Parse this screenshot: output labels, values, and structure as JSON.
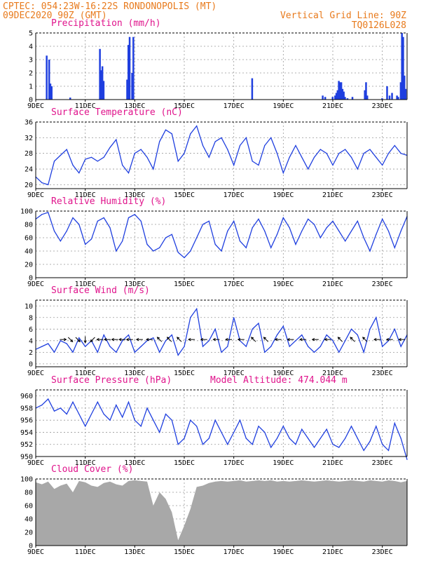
{
  "header": {
    "line1": "CPTEC:   054:23W-16:22S   RONDONOPOLIS (MT)",
    "line2": "09DEC2020 90Z (GMT)",
    "grid_note": "Vertical Grid Line: 90Z",
    "code": "TQ0126L028"
  },
  "colors": {
    "header": "#e87a1c",
    "title": "#e0148c",
    "line": "#1f3fdf",
    "bar": "#1f3fdf",
    "cloud": "#a8a8a8"
  },
  "x_categories": [
    "9DEC",
    "11DEC",
    "13DEC",
    "15DEC",
    "17DEC",
    "19DEC",
    "21DEC",
    "23DEC"
  ],
  "x_day_offsets": [
    0,
    2,
    4,
    6,
    8,
    10,
    12,
    14
  ],
  "x_range_days": [
    0,
    15
  ],
  "chart_data": [
    {
      "id": "precip",
      "type": "bar",
      "title": "Precipitation (mm/h)",
      "ylim": [
        0,
        5
      ],
      "yticks": [
        0,
        1,
        2,
        3,
        4,
        5
      ],
      "values": [
        [
          0.45,
          3.3
        ],
        [
          0.55,
          3.0
        ],
        [
          0.6,
          1.2
        ],
        [
          0.65,
          1.0
        ],
        [
          1.4,
          0.15
        ],
        [
          2.6,
          3.8
        ],
        [
          2.65,
          2.2
        ],
        [
          2.7,
          2.5
        ],
        [
          2.75,
          1.4
        ],
        [
          3.7,
          1.5
        ],
        [
          3.75,
          4.1
        ],
        [
          3.8,
          4.7
        ],
        [
          3.9,
          2.0
        ],
        [
          3.95,
          4.7
        ],
        [
          8.75,
          1.6
        ],
        [
          11.6,
          0.3
        ],
        [
          11.7,
          0.2
        ],
        [
          12.0,
          0.2
        ],
        [
          12.1,
          0.3
        ],
        [
          12.15,
          0.5
        ],
        [
          12.2,
          0.7
        ],
        [
          12.25,
          1.4
        ],
        [
          12.3,
          1.3
        ],
        [
          12.35,
          1.3
        ],
        [
          12.4,
          0.8
        ],
        [
          12.45,
          0.6
        ],
        [
          12.5,
          0.2
        ],
        [
          12.6,
          0.1
        ],
        [
          12.8,
          0.2
        ],
        [
          13.3,
          0.7
        ],
        [
          13.35,
          1.3
        ],
        [
          13.4,
          0.3
        ],
        [
          14.0,
          0.1
        ],
        [
          14.2,
          1.0
        ],
        [
          14.3,
          0.3
        ],
        [
          14.4,
          0.5
        ],
        [
          14.6,
          0.3
        ],
        [
          14.65,
          0.2
        ],
        [
          14.75,
          1.3
        ],
        [
          14.8,
          5.0
        ],
        [
          14.85,
          4.7
        ],
        [
          14.9,
          1.8
        ],
        [
          14.95,
          0.8
        ]
      ]
    },
    {
      "id": "temp",
      "type": "line",
      "title": "Surface Temperature (nC)",
      "ylim": [
        19,
        36
      ],
      "yticks": [
        20,
        24,
        28,
        32,
        36
      ],
      "x": [
        0,
        0.25,
        0.5,
        0.75,
        1,
        1.25,
        1.5,
        1.75,
        2,
        2.25,
        2.5,
        2.75,
        3,
        3.25,
        3.5,
        3.75,
        4,
        4.25,
        4.5,
        4.75,
        5,
        5.25,
        5.5,
        5.75,
        6,
        6.25,
        6.5,
        6.75,
        7,
        7.25,
        7.5,
        7.75,
        8,
        8.25,
        8.5,
        8.75,
        9,
        9.25,
        9.5,
        9.75,
        10,
        10.25,
        10.5,
        10.75,
        11,
        11.25,
        11.5,
        11.75,
        12,
        12.25,
        12.5,
        12.75,
        13,
        13.25,
        13.5,
        13.75,
        14,
        14.25,
        14.5,
        14.75,
        15
      ],
      "y": [
        22,
        20.5,
        20,
        26,
        27.5,
        29,
        25,
        23,
        26.5,
        27,
        26,
        27,
        29.5,
        31.5,
        25,
        23,
        28,
        29,
        27,
        24,
        31,
        34,
        33,
        26,
        28,
        33,
        35,
        30,
        27,
        31,
        32,
        29,
        25,
        30,
        32,
        26,
        25,
        30,
        32,
        28,
        23,
        27,
        30,
        27,
        24,
        27,
        29,
        28,
        25,
        28,
        29,
        27,
        24,
        28,
        29,
        27,
        25,
        28,
        30,
        28,
        27.5
      ]
    },
    {
      "id": "rh",
      "type": "line",
      "title": "Relative Humidity (%)",
      "ylim": [
        0,
        100
      ],
      "yticks": [
        0,
        20,
        40,
        60,
        80,
        100
      ],
      "x": [
        0,
        0.25,
        0.5,
        0.75,
        1,
        1.25,
        1.5,
        1.75,
        2,
        2.25,
        2.5,
        2.75,
        3,
        3.25,
        3.5,
        3.75,
        4,
        4.25,
        4.5,
        4.75,
        5,
        5.25,
        5.5,
        5.75,
        6,
        6.25,
        6.5,
        6.75,
        7,
        7.25,
        7.5,
        7.75,
        8,
        8.25,
        8.5,
        8.75,
        9,
        9.25,
        9.5,
        9.75,
        10,
        10.25,
        10.5,
        10.75,
        11,
        11.25,
        11.5,
        11.75,
        12,
        12.25,
        12.5,
        12.75,
        13,
        13.25,
        13.5,
        13.75,
        14,
        14.25,
        14.5,
        14.75,
        15
      ],
      "y": [
        88,
        95,
        98,
        70,
        55,
        70,
        90,
        80,
        50,
        58,
        85,
        90,
        75,
        40,
        55,
        90,
        95,
        85,
        50,
        40,
        45,
        60,
        65,
        38,
        30,
        40,
        60,
        80,
        85,
        50,
        40,
        70,
        85,
        55,
        45,
        75,
        88,
        70,
        45,
        65,
        90,
        75,
        50,
        70,
        88,
        80,
        60,
        75,
        85,
        70,
        55,
        70,
        85,
        60,
        40,
        65,
        88,
        70,
        45,
        70,
        92
      ]
    },
    {
      "id": "wind",
      "type": "line",
      "title": "Surface Wind (m/s)",
      "ylim": [
        -0.5,
        11
      ],
      "yticks": [
        0,
        2,
        4,
        6,
        8,
        10
      ],
      "x": [
        0,
        0.25,
        0.5,
        0.75,
        1,
        1.25,
        1.5,
        1.75,
        2,
        2.25,
        2.5,
        2.75,
        3,
        3.25,
        3.5,
        3.75,
        4,
        4.25,
        4.5,
        4.75,
        5,
        5.25,
        5.5,
        5.75,
        6,
        6.25,
        6.5,
        6.75,
        7,
        7.25,
        7.5,
        7.75,
        8,
        8.25,
        8.5,
        8.75,
        9,
        9.25,
        9.5,
        9.75,
        10,
        10.25,
        10.5,
        10.75,
        11,
        11.25,
        11.5,
        11.75,
        12,
        12.25,
        12.5,
        12.75,
        13,
        13.25,
        13.5,
        13.75,
        14,
        14.25,
        14.5,
        14.75,
        15
      ],
      "y": [
        2.5,
        3,
        3.5,
        2,
        4,
        3.5,
        2,
        4.5,
        3,
        4,
        2,
        5,
        3,
        2,
        4,
        5,
        2,
        3,
        4,
        4.5,
        2,
        4,
        5,
        1.5,
        3,
        8,
        9.5,
        3,
        4,
        6,
        2,
        3,
        8,
        4,
        3,
        6,
        7,
        2,
        3,
        5,
        6.5,
        3,
        4,
        5,
        3,
        2,
        3,
        5,
        4,
        2,
        4,
        6,
        5,
        2,
        6,
        8,
        3,
        4,
        6,
        3,
        5
      ],
      "arrows": [
        [
          1.1,
          "E"
        ],
        [
          1.4,
          "SE"
        ],
        [
          1.7,
          "SE"
        ],
        [
          2,
          "S"
        ],
        [
          2.3,
          "SW"
        ],
        [
          2.6,
          "W"
        ],
        [
          2.9,
          "W"
        ],
        [
          3.2,
          "W"
        ],
        [
          3.5,
          "W"
        ],
        [
          3.8,
          "W"
        ],
        [
          4.2,
          "W"
        ],
        [
          4.6,
          "W"
        ],
        [
          5,
          "NW"
        ],
        [
          5.4,
          "NW"
        ],
        [
          5.8,
          "NW"
        ],
        [
          6.3,
          "W"
        ],
        [
          6.8,
          "W"
        ],
        [
          7.3,
          "W"
        ],
        [
          7.8,
          "W"
        ],
        [
          8.3,
          "W"
        ],
        [
          8.8,
          "NW"
        ],
        [
          9.3,
          "NW"
        ],
        [
          9.8,
          "W"
        ],
        [
          10.3,
          "W"
        ],
        [
          10.8,
          "W"
        ],
        [
          11.3,
          "W"
        ],
        [
          11.8,
          "W"
        ],
        [
          12.3,
          "NW"
        ],
        [
          12.8,
          "NW"
        ],
        [
          13.3,
          "NW"
        ],
        [
          13.8,
          "W"
        ],
        [
          14.3,
          "W"
        ],
        [
          14.8,
          "W"
        ]
      ]
    },
    {
      "id": "pres",
      "type": "line",
      "title": "Surface Pressure (hPa)",
      "note": "Model Altitude: 474.044 m",
      "ylim": [
        950,
        961
      ],
      "yticks": [
        950,
        952,
        954,
        956,
        958,
        960
      ],
      "x": [
        0,
        0.25,
        0.5,
        0.75,
        1,
        1.25,
        1.5,
        1.75,
        2,
        2.25,
        2.5,
        2.75,
        3,
        3.25,
        3.5,
        3.75,
        4,
        4.25,
        4.5,
        4.75,
        5,
        5.25,
        5.5,
        5.75,
        6,
        6.25,
        6.5,
        6.75,
        7,
        7.25,
        7.5,
        7.75,
        8,
        8.25,
        8.5,
        8.75,
        9,
        9.25,
        9.5,
        9.75,
        10,
        10.25,
        10.5,
        10.75,
        11,
        11.25,
        11.5,
        11.75,
        12,
        12.25,
        12.5,
        12.75,
        13,
        13.25,
        13.5,
        13.75,
        14,
        14.25,
        14.5,
        14.75,
        15
      ],
      "y": [
        958,
        958.5,
        959.5,
        957.5,
        958,
        957,
        959,
        957,
        955,
        957,
        959,
        957,
        956,
        958.5,
        956.5,
        959,
        956,
        955,
        958,
        956,
        954,
        957,
        956,
        952,
        953,
        956,
        955,
        952,
        953,
        956,
        954,
        952,
        954,
        956,
        953,
        952,
        955,
        954,
        951.5,
        953,
        955,
        953,
        952,
        954.5,
        953,
        951.5,
        953,
        954.5,
        952,
        951.5,
        953,
        955,
        953,
        951,
        952.5,
        955,
        952,
        951,
        955.5,
        953,
        949.5
      ]
    },
    {
      "id": "cloud",
      "type": "area",
      "title": "Cloud Cover (%)",
      "ylim": [
        0,
        100
      ],
      "yticks": [
        0,
        20,
        40,
        60,
        80,
        100
      ],
      "x": [
        0,
        0.25,
        0.5,
        0.75,
        1,
        1.25,
        1.5,
        1.75,
        2,
        2.25,
        2.5,
        2.75,
        3,
        3.25,
        3.5,
        3.75,
        4,
        4.25,
        4.5,
        4.75,
        5,
        5.25,
        5.5,
        5.75,
        6,
        6.25,
        6.5,
        6.75,
        7,
        7.25,
        7.5,
        7.75,
        8,
        8.25,
        8.5,
        8.75,
        9,
        9.25,
        9.5,
        9.75,
        10,
        10.25,
        10.5,
        10.75,
        11,
        11.25,
        11.5,
        11.75,
        12,
        12.25,
        12.5,
        12.75,
        13,
        13.25,
        13.5,
        13.75,
        14,
        14.25,
        14.5,
        14.75,
        15
      ],
      "y": [
        95,
        92,
        96,
        85,
        90,
        93,
        80,
        97,
        95,
        90,
        88,
        94,
        96,
        92,
        90,
        97,
        98,
        97,
        96,
        60,
        80,
        70,
        50,
        8,
        30,
        55,
        88,
        90,
        94,
        96,
        97,
        96,
        97,
        98,
        96,
        97,
        98,
        97,
        98,
        96,
        97,
        96,
        97,
        98,
        97,
        96,
        97,
        98,
        97,
        96,
        97,
        98,
        97,
        96,
        98,
        97,
        96,
        98,
        97,
        95,
        97
      ]
    }
  ]
}
